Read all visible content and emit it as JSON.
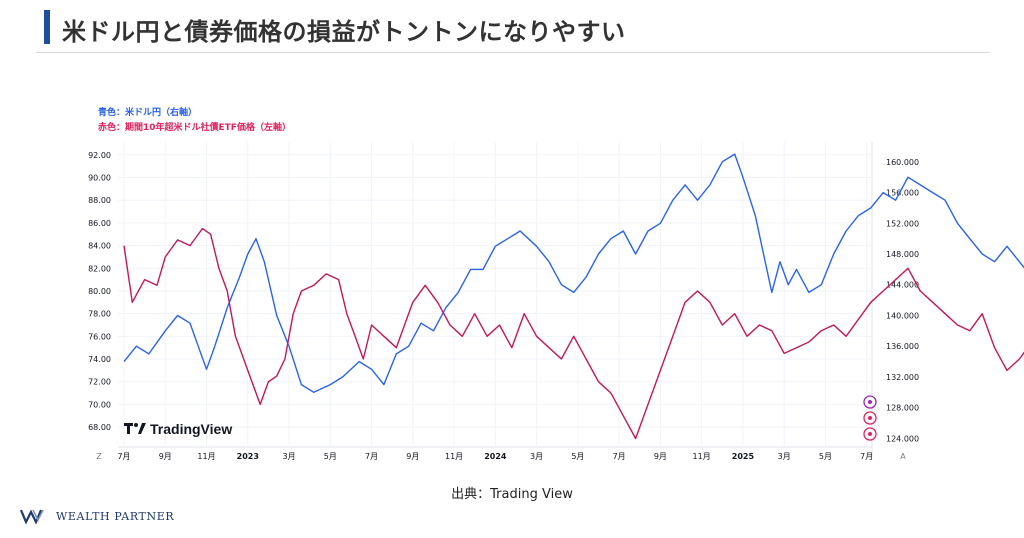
{
  "header": {
    "title": "米ドル円と債券価格の損益がトントンになりやすい"
  },
  "legend": {
    "blue_label": "青色：米ドル円（右軸）",
    "red_label": "赤色：期間10年超米ドル社債ETF価格（左軸）"
  },
  "source": "出典：Trading View",
  "brand": "WEALTH PARTNER",
  "watermark": "TradingView",
  "corner_labels": {
    "left": "Z",
    "right": "A"
  },
  "colors": {
    "blue": "#2a62f0",
    "red": "#c2185b",
    "accent": "#1f4e9c"
  },
  "chart_data": {
    "type": "line",
    "x_ticks": [
      "7月",
      "9月",
      "11月",
      "2023",
      "3月",
      "5月",
      "7月",
      "9月",
      "11月",
      "2024",
      "3月",
      "5月",
      "7月",
      "9月",
      "11月",
      "2025",
      "3月",
      "5月",
      "7月"
    ],
    "x_ticks_bold": [
      "2023",
      "2024",
      "2025"
    ],
    "left_axis": {
      "ticks": [
        "92.00",
        "90.00",
        "88.00",
        "86.00",
        "84.00",
        "82.00",
        "80.00",
        "78.00",
        "76.00",
        "74.00",
        "72.00",
        "70.00",
        "68.00"
      ],
      "ylim": [
        66.6,
        92.6
      ]
    },
    "right_axis": {
      "ticks": [
        "160.000",
        "156.000",
        "152.000",
        "148.000",
        "144.000",
        "140.000",
        "136.000",
        "132.000",
        "128.000",
        "124.000"
      ],
      "ylim": [
        123.4,
        161.8
      ]
    },
    "series": [
      {
        "name": "米ドル円",
        "axis": "right",
        "color": "#2a62f0",
        "points": [
          [
            0,
            134
          ],
          [
            0.3,
            136
          ],
          [
            0.6,
            135
          ],
          [
            1,
            138
          ],
          [
            1.3,
            140
          ],
          [
            1.6,
            139
          ],
          [
            2,
            133
          ],
          [
            2.2,
            136
          ],
          [
            2.5,
            141
          ],
          [
            2.8,
            145
          ],
          [
            3,
            148
          ],
          [
            3.2,
            150
          ],
          [
            3.4,
            147
          ],
          [
            3.7,
            140
          ],
          [
            4,
            136
          ],
          [
            4.3,
            131
          ],
          [
            4.6,
            130
          ],
          [
            5,
            131
          ],
          [
            5.3,
            132
          ],
          [
            5.7,
            134
          ],
          [
            6,
            133
          ],
          [
            6.3,
            131
          ],
          [
            6.6,
            135
          ],
          [
            6.9,
            136
          ],
          [
            7.2,
            139
          ],
          [
            7.5,
            138
          ],
          [
            7.8,
            141
          ],
          [
            8.1,
            143
          ],
          [
            8.4,
            146
          ],
          [
            8.7,
            146
          ],
          [
            9,
            149
          ],
          [
            9.3,
            150
          ],
          [
            9.6,
            151
          ],
          [
            10,
            149
          ],
          [
            10.3,
            147
          ],
          [
            10.6,
            144
          ],
          [
            10.9,
            143
          ],
          [
            11.2,
            145
          ],
          [
            11.5,
            148
          ],
          [
            11.8,
            150
          ],
          [
            12.1,
            151
          ],
          [
            12.4,
            148
          ],
          [
            12.7,
            151
          ],
          [
            13,
            152
          ],
          [
            13.3,
            155
          ],
          [
            13.6,
            157
          ],
          [
            13.9,
            155
          ],
          [
            14.2,
            157
          ],
          [
            14.5,
            160
          ],
          [
            14.8,
            161
          ],
          [
            15,
            158
          ],
          [
            15.3,
            153
          ],
          [
            15.5,
            148
          ],
          [
            15.7,
            143
          ],
          [
            15.9,
            147
          ],
          [
            16.1,
            144
          ],
          [
            16.3,
            146
          ],
          [
            16.6,
            143
          ],
          [
            16.9,
            144
          ],
          [
            17.2,
            148
          ],
          [
            17.5,
            151
          ],
          [
            17.8,
            153
          ],
          [
            18.1,
            154
          ],
          [
            18.4,
            156
          ],
          [
            18.7,
            155
          ],
          [
            19,
            158
          ],
          [
            19.3,
            157
          ],
          [
            19.6,
            156
          ],
          [
            19.9,
            155
          ],
          [
            20.2,
            152
          ],
          [
            20.5,
            150
          ],
          [
            20.8,
            148
          ],
          [
            21.1,
            147
          ],
          [
            21.4,
            149
          ],
          [
            21.7,
            147
          ],
          [
            22,
            145
          ],
          [
            22.3,
            141
          ],
          [
            22.6,
            143
          ],
          [
            22.9,
            145
          ],
          [
            23.2,
            143
          ],
          [
            23.5,
            144
          ],
          [
            23.8,
            146
          ],
          [
            24.1,
            145
          ],
          [
            24.4,
            143
          ]
        ]
      },
      {
        "name": "期間10年超米ドル社債ETF価格",
        "axis": "left",
        "color": "#c2185b",
        "points": [
          [
            0,
            84
          ],
          [
            0.2,
            79
          ],
          [
            0.5,
            81
          ],
          [
            0.8,
            80.5
          ],
          [
            1,
            83
          ],
          [
            1.3,
            84.5
          ],
          [
            1.6,
            84
          ],
          [
            1.9,
            85.5
          ],
          [
            2.1,
            85
          ],
          [
            2.3,
            82
          ],
          [
            2.5,
            80
          ],
          [
            2.7,
            76
          ],
          [
            2.9,
            74
          ],
          [
            3.1,
            72
          ],
          [
            3.3,
            70
          ],
          [
            3.5,
            72
          ],
          [
            3.7,
            72.5
          ],
          [
            3.9,
            74
          ],
          [
            4.1,
            78
          ],
          [
            4.3,
            80
          ],
          [
            4.6,
            80.5
          ],
          [
            4.9,
            81.5
          ],
          [
            5.2,
            81
          ],
          [
            5.4,
            78
          ],
          [
            5.6,
            76
          ],
          [
            5.8,
            74
          ],
          [
            6,
            77
          ],
          [
            6.3,
            76
          ],
          [
            6.6,
            75
          ],
          [
            7,
            79
          ],
          [
            7.3,
            80.5
          ],
          [
            7.6,
            79
          ],
          [
            7.9,
            77
          ],
          [
            8.2,
            76
          ],
          [
            8.5,
            78
          ],
          [
            8.8,
            76
          ],
          [
            9.1,
            77
          ],
          [
            9.4,
            75
          ],
          [
            9.7,
            78
          ],
          [
            10,
            76
          ],
          [
            10.3,
            75
          ],
          [
            10.6,
            74
          ],
          [
            10.9,
            76
          ],
          [
            11.2,
            74
          ],
          [
            11.5,
            72
          ],
          [
            11.8,
            71
          ],
          [
            12.1,
            69
          ],
          [
            12.4,
            67
          ],
          [
            12.7,
            70
          ],
          [
            13,
            73
          ],
          [
            13.3,
            76
          ],
          [
            13.6,
            79
          ],
          [
            13.9,
            80
          ],
          [
            14.2,
            79
          ],
          [
            14.5,
            77
          ],
          [
            14.8,
            78
          ],
          [
            15.1,
            76
          ],
          [
            15.4,
            77
          ],
          [
            15.7,
            76.5
          ],
          [
            16,
            74.5
          ],
          [
            16.3,
            75
          ],
          [
            16.6,
            75.5
          ],
          [
            16.9,
            76.5
          ],
          [
            17.2,
            77
          ],
          [
            17.5,
            76
          ],
          [
            17.8,
            77.5
          ],
          [
            18.1,
            79
          ],
          [
            18.4,
            80
          ],
          [
            18.7,
            81
          ],
          [
            19,
            82
          ],
          [
            19.3,
            80
          ],
          [
            19.6,
            79
          ],
          [
            19.9,
            78
          ],
          [
            20.2,
            77
          ],
          [
            20.5,
            76.5
          ],
          [
            20.8,
            78
          ],
          [
            21.1,
            75
          ],
          [
            21.4,
            73
          ],
          [
            21.7,
            74
          ],
          [
            22,
            75.5
          ],
          [
            22.3,
            76.5
          ],
          [
            22.6,
            75
          ],
          [
            22.9,
            76
          ],
          [
            23.2,
            75
          ],
          [
            23.5,
            72
          ],
          [
            23.8,
            73
          ],
          [
            24.1,
            74.5
          ],
          [
            24.4,
            75.5
          ]
        ]
      }
    ]
  }
}
